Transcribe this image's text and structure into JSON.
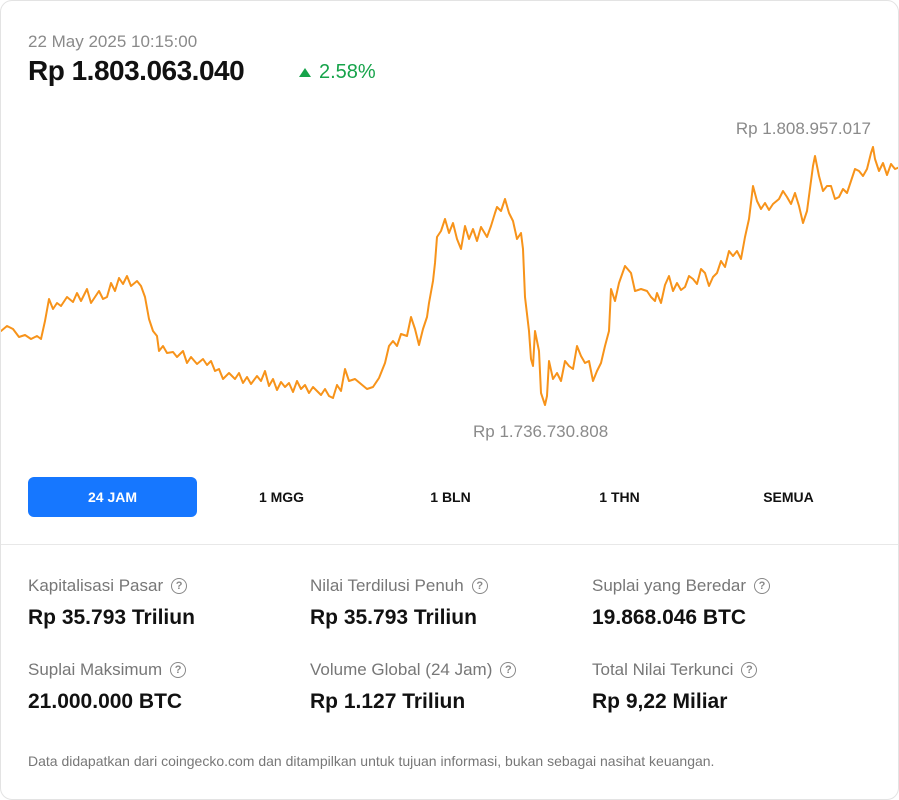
{
  "header": {
    "timestamp": "22 May 2025 10:15:00",
    "price": "Rp 1.803.063.040",
    "change": "2.58%",
    "change_direction": "up",
    "change_color": "#16a34a"
  },
  "chart": {
    "high_label": "Rp 1.808.957.017",
    "low_label": "Rp 1.736.730.808",
    "line_color": "#f7931a"
  },
  "tabs": [
    {
      "label": "24 JAM",
      "active": true
    },
    {
      "label": "1 MGG",
      "active": false
    },
    {
      "label": "1 BLN",
      "active": false
    },
    {
      "label": "1 THN",
      "active": false
    },
    {
      "label": "SEMUA",
      "active": false
    }
  ],
  "stats": [
    {
      "label": "Kapitalisasi Pasar",
      "value": "Rp 35.793 Triliun"
    },
    {
      "label": "Nilai Terdilusi Penuh",
      "value": "Rp 35.793 Triliun"
    },
    {
      "label": "Suplai yang Beredar",
      "value": "19.868.046 BTC"
    },
    {
      "label": "Suplai Maksimum",
      "value": "21.000.000 BTC"
    },
    {
      "label": "Volume Global (24 Jam)",
      "value": "Rp 1.127 Triliun"
    },
    {
      "label": "Total Nilai Terkunci",
      "value": "Rp 9,22 Miliar"
    }
  ],
  "accent_color": "#1677ff",
  "disclaimer": "Data didapatkan dari coingecko.com dan ditampilkan untuk tujuan informasi, bukan sebagai nasihat keuangan."
}
